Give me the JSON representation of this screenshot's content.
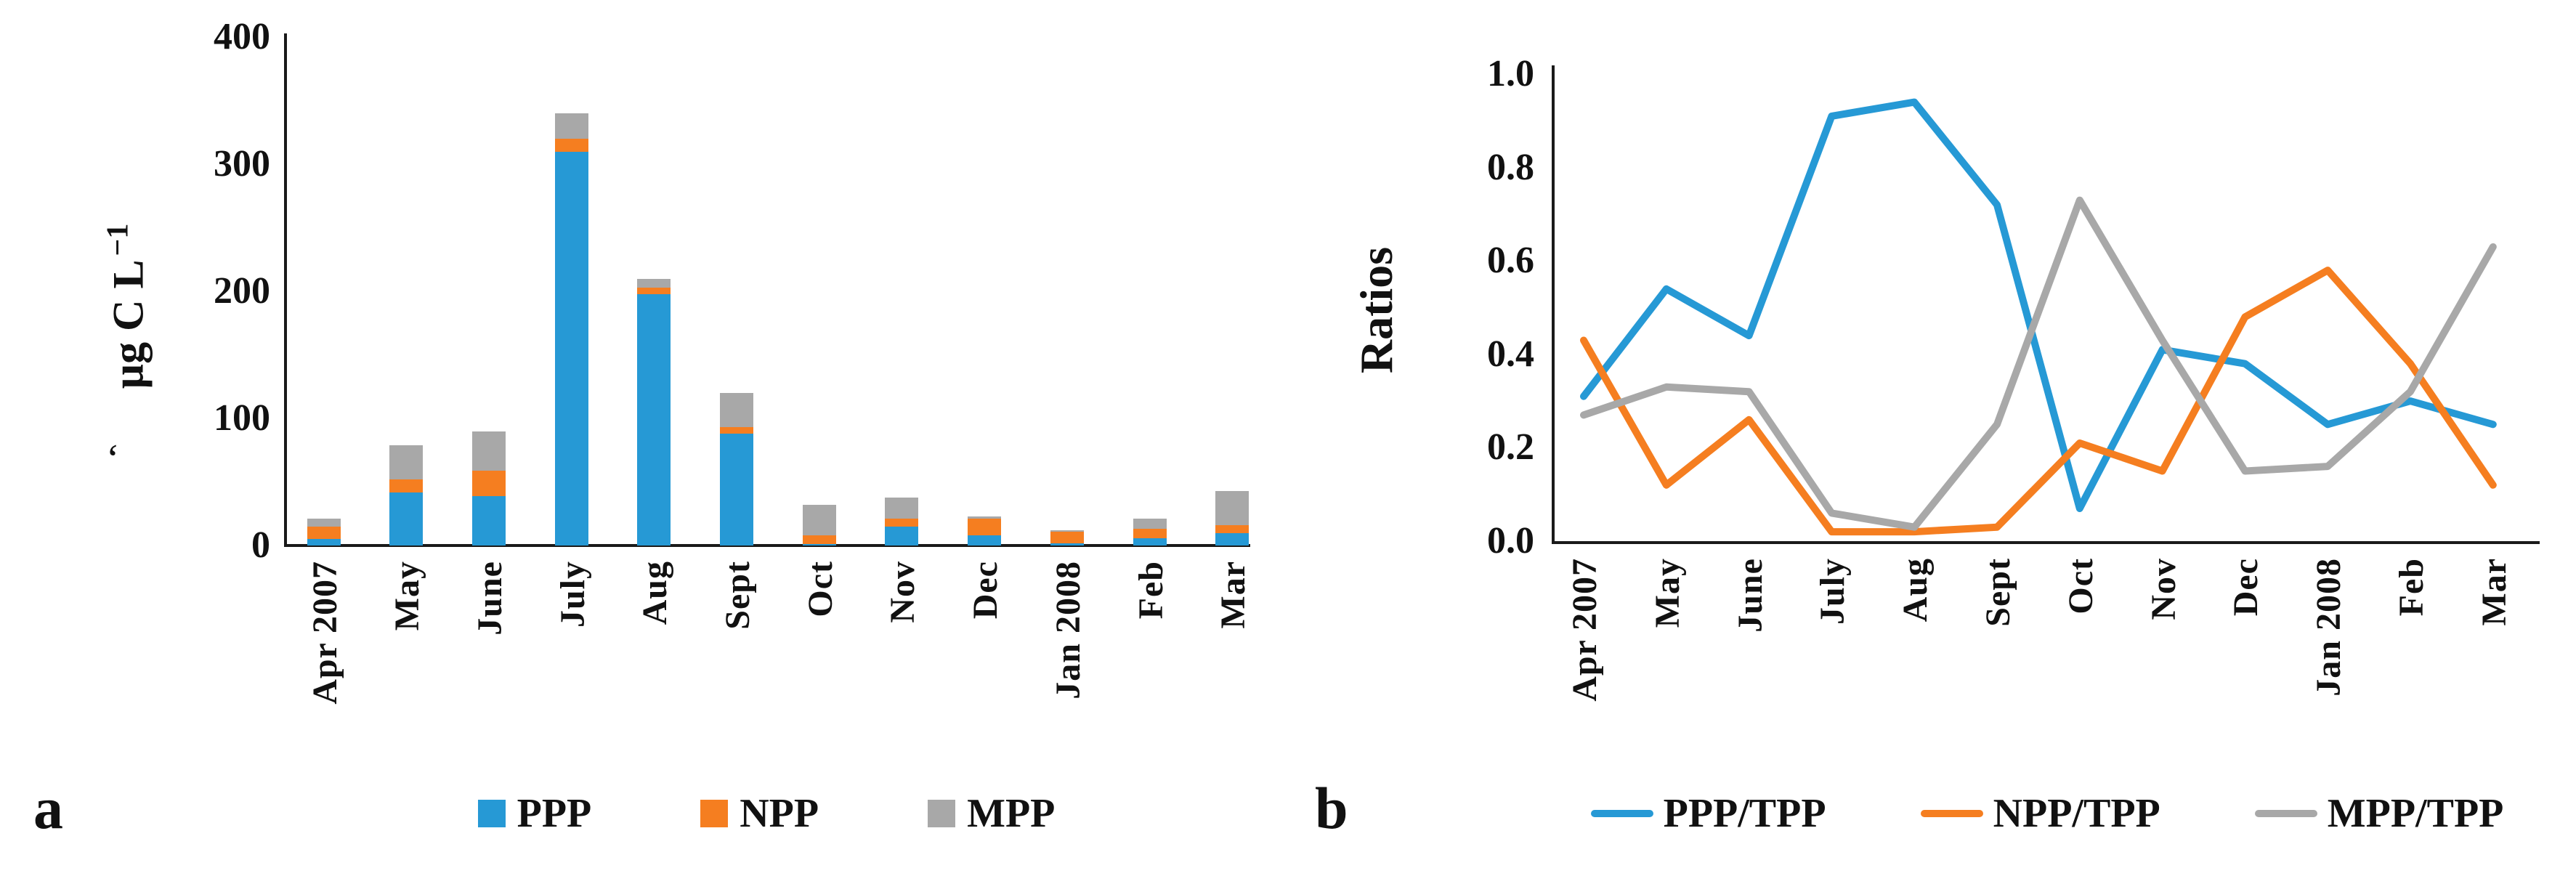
{
  "figure": {
    "panel_a": {
      "label": "a"
    },
    "panel_b": {
      "label": "b"
    },
    "stray_mark": "‘"
  },
  "chart_data": [
    {
      "type": "bar",
      "stacked": true,
      "title": "",
      "xlabel": "",
      "ylabel": "µg C L⁻¹",
      "ylabel_prefix": "µg C L",
      "ylabel_sup": "−1",
      "ylim": [
        0,
        400
      ],
      "yticks": [
        0,
        100,
        200,
        300,
        400
      ],
      "ytick_labels": [
        "0",
        "100",
        "200",
        "300",
        "400"
      ],
      "grid": false,
      "legend_position": "bottom",
      "categories": [
        "Apr 2007",
        "May",
        "June",
        "July",
        "Aug",
        "Sept",
        "Oct",
        "Nov",
        "Dec",
        "Jan 2008",
        "Feb",
        "Mar"
      ],
      "series": [
        {
          "name": "PPP",
          "color": "#2699D5",
          "values": [
            5,
            42,
            39,
            310,
            198,
            88,
            1,
            15,
            8,
            2,
            6,
            10
          ]
        },
        {
          "name": "NPP",
          "color": "#F57E20",
          "values": [
            10,
            10,
            20,
            10,
            5,
            5,
            7,
            6,
            13,
            9,
            7,
            6
          ]
        },
        {
          "name": "MPP",
          "color": "#A8A8A8",
          "values": [
            6,
            27,
            31,
            20,
            7,
            27,
            24,
            17,
            2,
            1,
            8,
            27
          ]
        }
      ]
    },
    {
      "type": "line",
      "title": "",
      "xlabel": "",
      "ylabel": "Ratios",
      "ylim": [
        0,
        1.0
      ],
      "yticks": [
        0.0,
        0.2,
        0.4,
        0.6,
        0.8,
        1.0
      ],
      "ytick_labels": [
        "0.0",
        "0.2",
        "0.4",
        "0.6",
        "0.8",
        "1.0"
      ],
      "grid": false,
      "legend_position": "bottom",
      "categories": [
        "Apr 2007",
        "May",
        "June",
        "July",
        "Aug",
        "Sept",
        "Oct",
        "Nov",
        "Dec",
        "Jan 2008",
        "Feb",
        "Mar"
      ],
      "series": [
        {
          "name": "PPP/TPP",
          "color": "#2699D5",
          "values": [
            0.31,
            0.54,
            0.44,
            0.91,
            0.94,
            0.72,
            0.07,
            0.41,
            0.38,
            0.25,
            0.3,
            0.25
          ]
        },
        {
          "name": "NPP/TPP",
          "color": "#F57E20",
          "values": [
            0.43,
            0.12,
            0.26,
            0.02,
            0.02,
            0.03,
            0.21,
            0.15,
            0.48,
            0.58,
            0.38,
            0.12
          ]
        },
        {
          "name": "MPP/TPP",
          "color": "#A8A8A8",
          "values": [
            0.27,
            0.33,
            0.32,
            0.06,
            0.03,
            0.25,
            0.73,
            0.43,
            0.15,
            0.16,
            0.32,
            0.63
          ]
        }
      ]
    }
  ]
}
